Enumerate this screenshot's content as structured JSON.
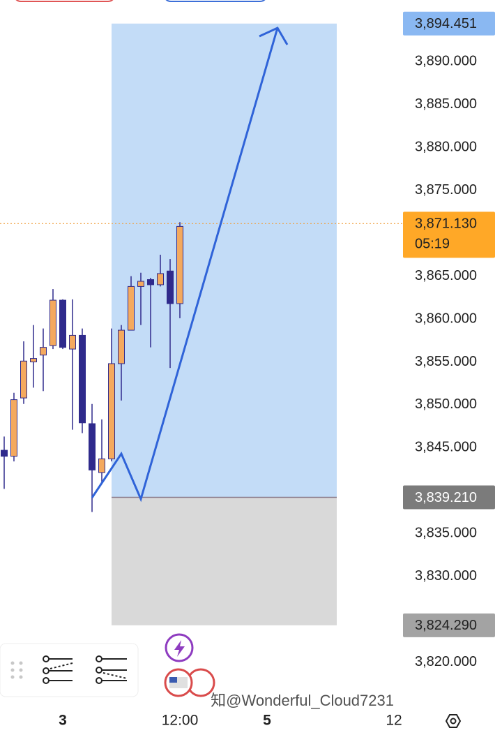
{
  "chart_data": {
    "type": "candlestick",
    "open": [
      3844.7,
      3844.0,
      3850.8,
      3855.0,
      3855.8,
      3856.9,
      3862.2,
      3856.5,
      3858.1,
      3847.8,
      3842.1,
      3843.7,
      3854.8,
      3858.7,
      3863.8,
      3864.6,
      3864.0,
      3865.6,
      3861.8
    ],
    "high": [
      3846.3,
      3851.4,
      3857.4,
      3859.3,
      3858.9,
      3863.5,
      3862.3,
      3862.3,
      3858.9,
      3850.1,
      3848.3,
      3858.9,
      3859.3,
      3865.0,
      3865.4,
      3864.8,
      3867.5,
      3867.0,
      3871.3
    ],
    "low": [
      3840.2,
      3843.4,
      3850.1,
      3852.0,
      3851.6,
      3856.5,
      3856.5,
      3847.1,
      3846.7,
      3837.5,
      3841.0,
      3843.4,
      3850.5,
      3858.7,
      3859.3,
      3856.7,
      3863.8,
      3854.3,
      3860.1
    ],
    "close": [
      3844.0,
      3850.6,
      3855.1,
      3855.4,
      3856.7,
      3862.2,
      3856.7,
      3858.1,
      3847.9,
      3842.4,
      3843.7,
      3854.8,
      3858.7,
      3863.8,
      3864.4,
      3864.0,
      3865.3,
      3861.8,
      3870.8
    ],
    "up_color": "#f4a95e",
    "down_color": "#2f2a8c",
    "ylim": [
      3815,
      3897.2
    ],
    "yticks": [
      {
        "value": 3820,
        "label": "3,820.000"
      },
      {
        "value": 3830,
        "label": "3,830.000"
      },
      {
        "value": 3835,
        "label": "3,835.000"
      },
      {
        "value": 3845,
        "label": "3,845.000"
      },
      {
        "value": 3850,
        "label": "3,850.000"
      },
      {
        "value": 3855,
        "label": "3,855.000"
      },
      {
        "value": 3860,
        "label": "3,860.000"
      },
      {
        "value": 3865,
        "label": "3,865.000"
      },
      {
        "value": 3875,
        "label": "3,875.000"
      },
      {
        "value": 3880,
        "label": "3,880.000"
      },
      {
        "value": 3885,
        "label": "3,885.000"
      },
      {
        "value": 3890,
        "label": "3,890.000"
      }
    ],
    "price_tags": [
      {
        "value": 3894.451,
        "label": "3,894.451",
        "color": "#8ab8f2"
      },
      {
        "value": 3871.13,
        "label": "3,871.130",
        "countdown": "05:19",
        "color": "#ffa827"
      },
      {
        "value": 3839.21,
        "label": "3,839.210",
        "color": "#7b7b7b"
      },
      {
        "value": 3824.29,
        "label": "3,824.290",
        "color": "#a3a3a3"
      }
    ],
    "x_labels": [
      "3",
      "12:00",
      "5",
      "12"
    ],
    "watermark": "知@Wonderful_Cloud7231"
  }
}
